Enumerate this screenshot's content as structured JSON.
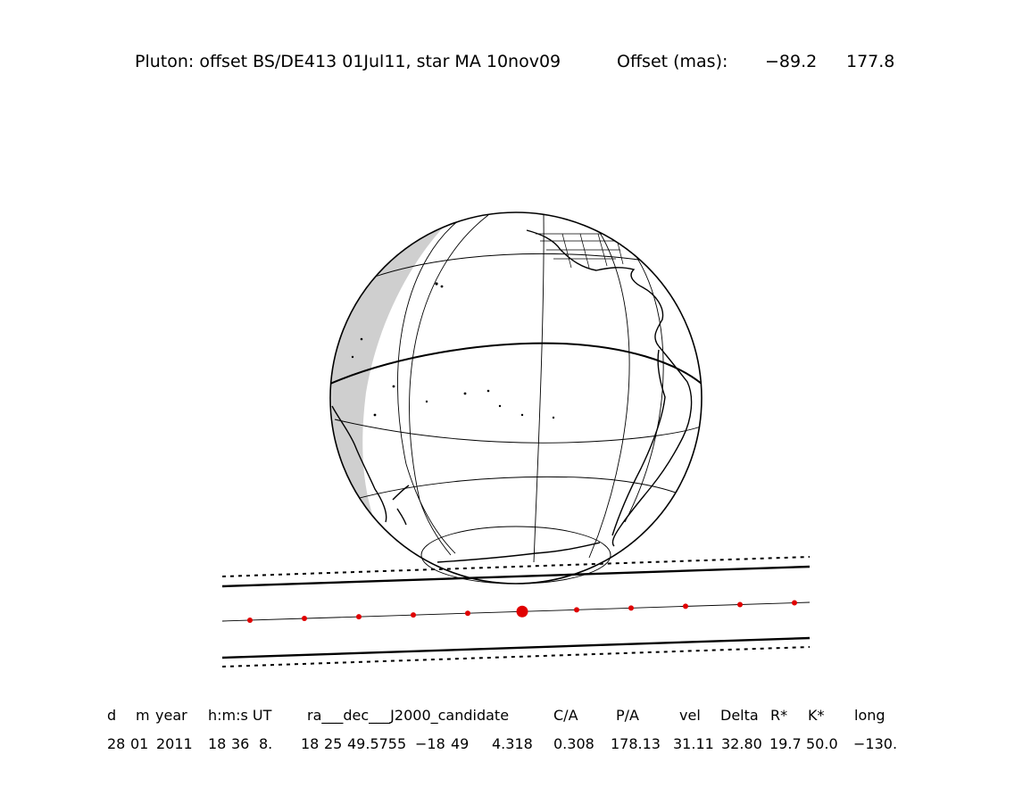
{
  "title": {
    "caption": "Pluton: offset BS/DE413 01Jul11, star MA 10nov09",
    "offset_label": "Offset (mas):",
    "offset_ra": "−89.2",
    "offset_dec": "177.8"
  },
  "table": {
    "headers": [
      "d",
      "m",
      "year",
      "h:m:s UT",
      "ra___dec___J2000_candidate",
      "C/A",
      "P/A",
      "vel",
      "Delta",
      "R*",
      "K*",
      "long"
    ],
    "values": [
      "28",
      "01",
      "2011",
      "18",
      "36",
      "8.",
      "18",
      "25",
      "49.5755",
      "−18",
      "49",
      "4.318",
      "0.308",
      "178.13",
      "31.11",
      "32.80",
      "19.7",
      "50.0",
      "−130."
    ]
  },
  "map": {
    "projection": "orthographic",
    "center_longitude": -130,
    "shadow_dot_count": 11,
    "closest_approach_marker_index": 5,
    "colors": {
      "chord_dots": "#e00000",
      "night_side": "#cfcfcf",
      "lines": "#000000"
    }
  }
}
